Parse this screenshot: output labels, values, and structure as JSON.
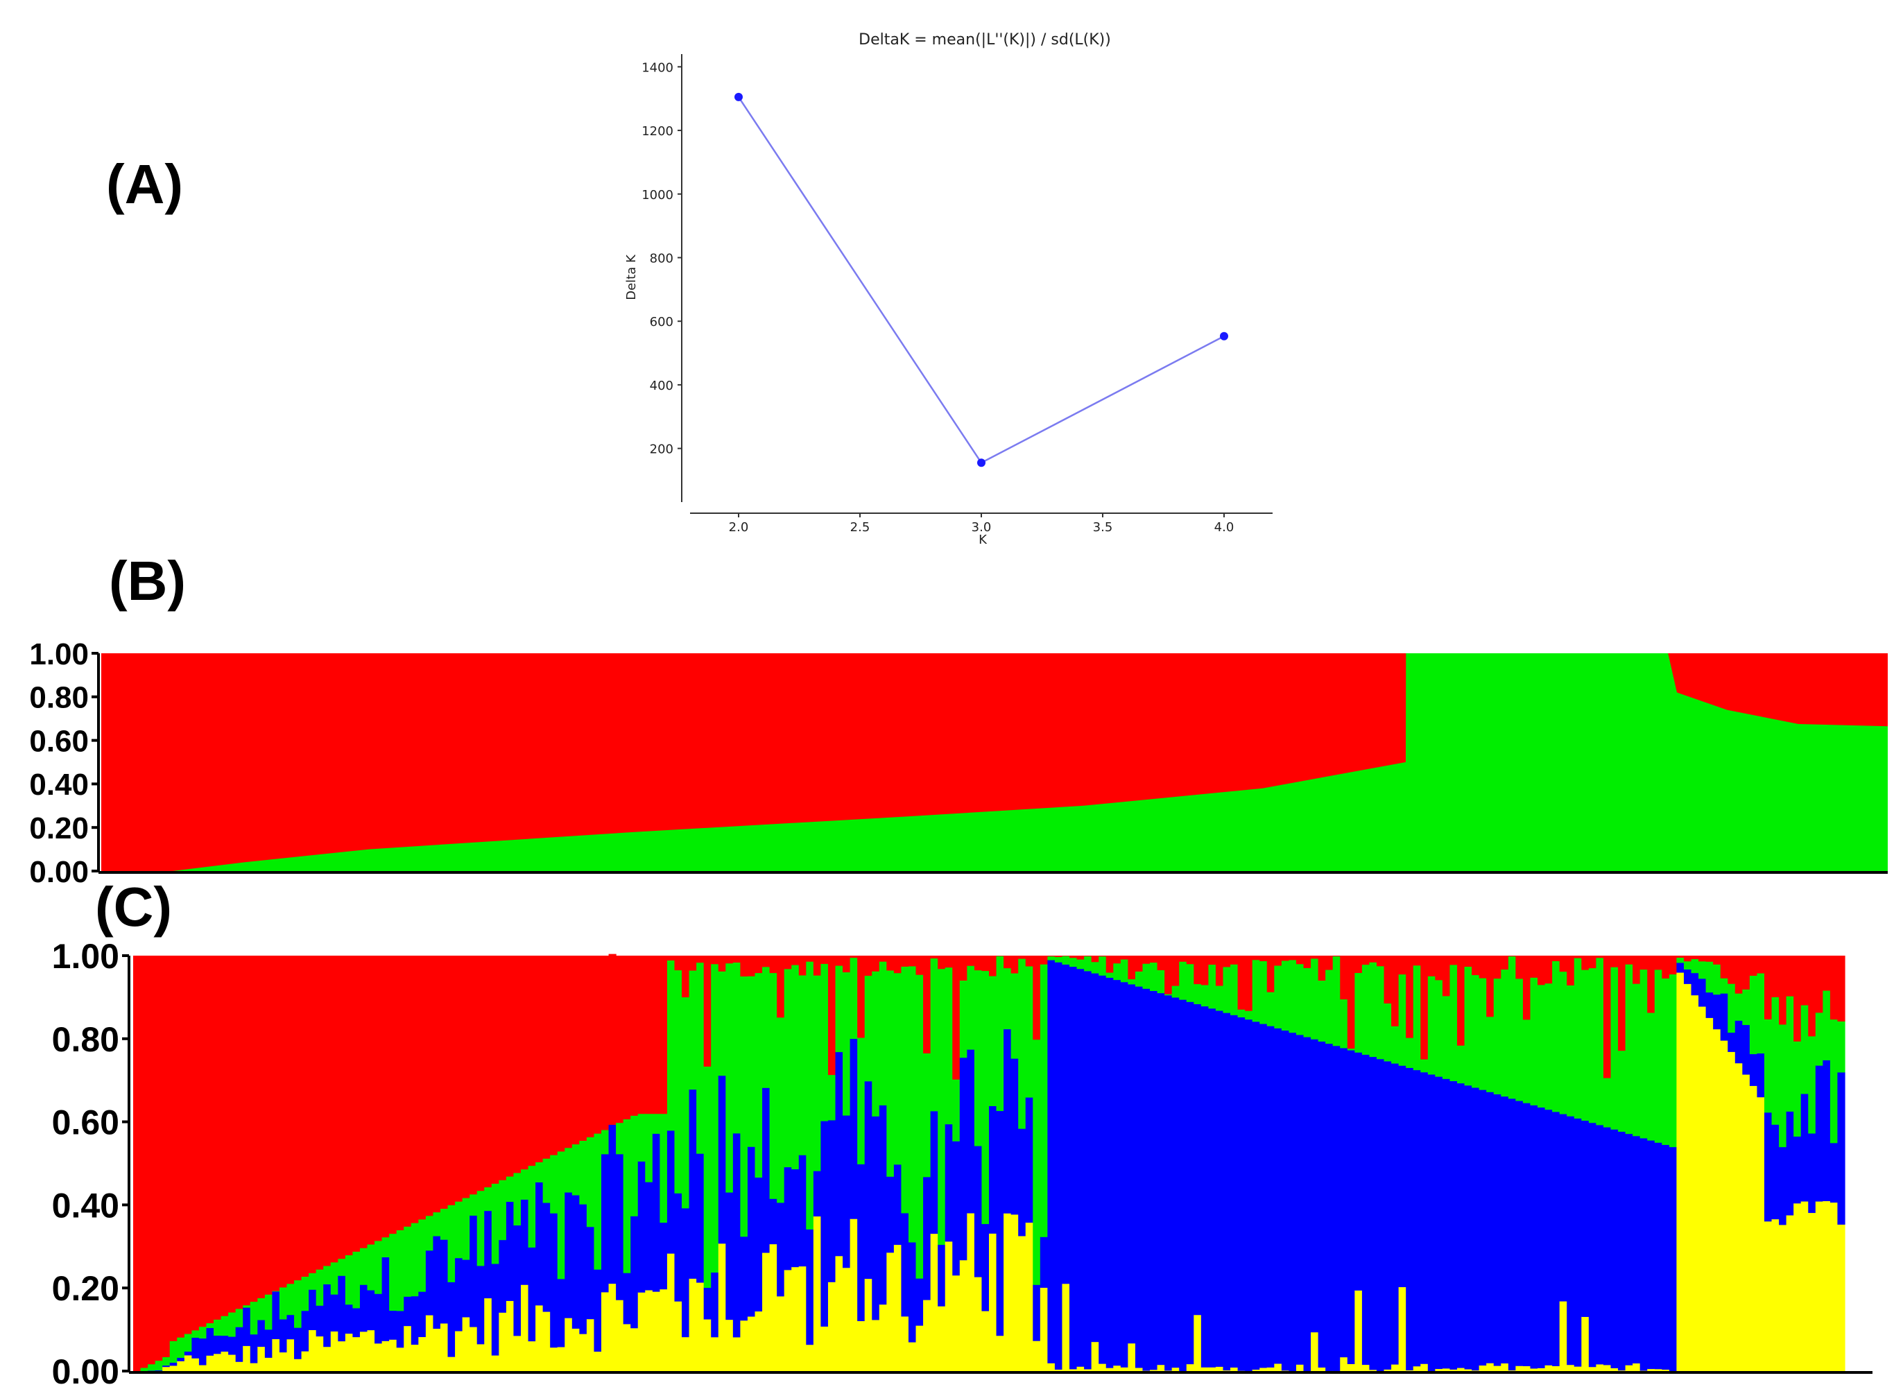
{
  "panels": {
    "a": "(A)",
    "b": "(B)",
    "c": "(C)"
  },
  "chart_data": [
    {
      "type": "line",
      "title": "DeltaK = mean(|L''(K)|) / sd(L(K))",
      "xlabel": "K",
      "ylabel": "Delta K",
      "x": [
        2.0,
        3.0,
        4.0
      ],
      "series": [
        {
          "values": [
            1305,
            155,
            553
          ]
        }
      ],
      "xlim": [
        1.8,
        4.2
      ],
      "ylim": [
        40,
        1440
      ],
      "xticks": [
        "2.0",
        "2.5",
        "3.0",
        "3.5",
        "4.0"
      ],
      "yticks": [
        "200",
        "400",
        "600",
        "800",
        "1000",
        "1200",
        "1400"
      ],
      "grid": false,
      "colors": {
        "line": "#7b7bf0",
        "marker": "#1a1aff"
      }
    },
    {
      "type": "bar",
      "stacked": true,
      "yticks": [
        "0.00",
        "0.20",
        "0.40",
        "0.60",
        "0.80",
        "1.00"
      ],
      "ylim": [
        0,
        1
      ],
      "colors": {
        "red": "#ff0000",
        "green": "#00ee00"
      },
      "boundary_points": [
        [
          0,
          0.0
        ],
        [
          0.04,
          0.0
        ],
        [
          0.08,
          0.04
        ],
        [
          0.15,
          0.1
        ],
        [
          0.3,
          0.18
        ],
        [
          0.45,
          0.25
        ],
        [
          0.55,
          0.3
        ],
        [
          0.65,
          0.38
        ],
        [
          0.7302,
          0.5
        ],
        [
          0.7303,
          1.0
        ],
        [
          0.877,
          1.0
        ],
        [
          0.882,
          0.82
        ],
        [
          0.91,
          0.74
        ],
        [
          0.95,
          0.675
        ],
        [
          1.0,
          0.665
        ]
      ],
      "note_group_order": [
        "red-dominant",
        "green",
        "mixed"
      ]
    },
    {
      "type": "bar",
      "stacked": true,
      "yticks": [
        "0.00",
        "0.20",
        "0.40",
        "0.60",
        "0.80",
        "1.00"
      ],
      "ylim": [
        0,
        1
      ],
      "colors": {
        "red": "#ff0000",
        "green": "#00ee00",
        "blue": "#0000ff",
        "yellow": "#ffff00"
      },
      "n_individuals": 234,
      "clusters": [
        "red",
        "green",
        "blue",
        "yellow"
      ]
    }
  ]
}
